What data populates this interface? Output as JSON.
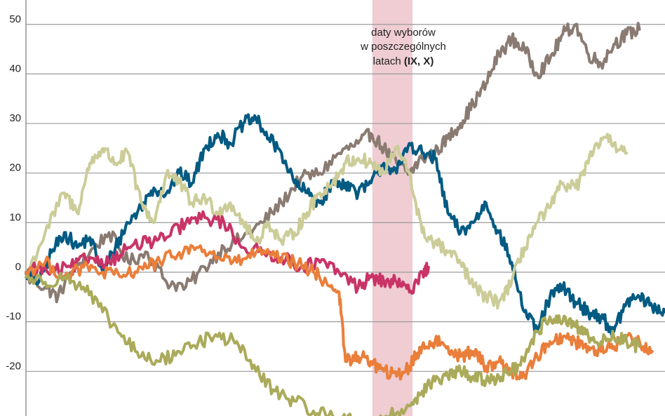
{
  "chart_data": {
    "type": "line",
    "title": "",
    "xlabel": "",
    "ylabel": "",
    "ylim": [
      -28.5,
      55
    ],
    "yticks": [
      50,
      40,
      30,
      20,
      10,
      0,
      -10,
      -20
    ],
    "yticklabels": [
      "50",
      "40",
      "30",
      "20",
      "10",
      "0",
      "-10",
      "-20"
    ],
    "grid": true,
    "x_range": [
      0,
      100
    ],
    "highlight_band": {
      "x_start": 54.2,
      "x_end": 60.5,
      "color": "#ecc4cb"
    },
    "annotation": {
      "line1": "daty wyborów",
      "line2": "w poszczególnych",
      "line3_regular": "latach ",
      "line3_bold": "(IX, X)"
    },
    "series": [
      {
        "color": "#8a7b72",
        "x": [
          0,
          3,
          5,
          7,
          10,
          13,
          16,
          19,
          22,
          25,
          28,
          31,
          34,
          37,
          40,
          43,
          46,
          49,
          52,
          54,
          56,
          58,
          60,
          62,
          64,
          66,
          68,
          70,
          72,
          74,
          76,
          78,
          80,
          82,
          84,
          86,
          88,
          90,
          92,
          94,
          96
        ],
        "y": [
          -1,
          -3,
          -5,
          0,
          4,
          8,
          2,
          4,
          -2,
          -3,
          1,
          5,
          7,
          10,
          14,
          19,
          20,
          24,
          26,
          28,
          25,
          22,
          20,
          23,
          24,
          27,
          30,
          34,
          38,
          44,
          47,
          45,
          40,
          43,
          48,
          50,
          44,
          42,
          46,
          48,
          49
        ]
      },
      {
        "color": "#005a82",
        "x": [
          0,
          2,
          4,
          6,
          8,
          10,
          12,
          14,
          16,
          18,
          20,
          22,
          24,
          26,
          28,
          30,
          32,
          34,
          36,
          38,
          40,
          42,
          44,
          46,
          48,
          50,
          52,
          54,
          56,
          58,
          60,
          62,
          64,
          66,
          68,
          70,
          72,
          74,
          76,
          78,
          80,
          82,
          84,
          86,
          88,
          90,
          92,
          94,
          96,
          98,
          100
        ],
        "y": [
          0,
          -2,
          4,
          8,
          5,
          7,
          0,
          5,
          10,
          13,
          17,
          16,
          20,
          18,
          25,
          28,
          26,
          30,
          31,
          27,
          24,
          18,
          16,
          14,
          18,
          18,
          16,
          18,
          22,
          20,
          26,
          24,
          23,
          12,
          8,
          10,
          14,
          8,
          2,
          -8,
          -12,
          -5,
          -3,
          -6,
          -8,
          -9,
          -12,
          -6,
          -5,
          -7,
          -8
        ]
      },
      {
        "color": "#cccc99",
        "x": [
          0,
          3,
          6,
          8,
          10,
          12,
          14,
          16,
          18,
          20,
          22,
          24,
          26,
          28,
          30,
          32,
          34,
          36,
          38,
          40,
          42,
          44,
          46,
          48,
          50,
          52,
          54,
          56,
          58,
          60,
          62,
          64,
          66,
          68,
          70,
          72,
          74,
          76,
          78,
          80,
          82,
          84,
          86,
          88,
          90,
          92,
          94
        ],
        "y": [
          -1,
          8,
          16,
          12,
          22,
          25,
          22,
          24,
          14,
          10,
          20,
          18,
          14,
          15,
          12,
          14,
          10,
          6,
          10,
          6,
          8,
          12,
          16,
          18,
          22,
          23,
          22,
          20,
          25,
          20,
          8,
          6,
          4,
          2,
          -3,
          -5,
          -6,
          -2,
          5,
          10,
          13,
          18,
          17,
          22,
          27,
          26,
          24
        ]
      },
      {
        "color": "#c93366",
        "x": [
          1,
          4,
          7,
          10,
          13,
          16,
          19,
          22,
          25,
          28,
          31,
          34,
          37,
          40,
          43,
          46,
          49,
          52,
          54,
          56,
          58,
          60,
          62,
          63
        ],
        "y": [
          1,
          0,
          1,
          3,
          2,
          5,
          6,
          7,
          10,
          11,
          10,
          5,
          4,
          3,
          1,
          2,
          0,
          -3,
          -1,
          -2,
          -2,
          -4,
          0,
          1
        ]
      },
      {
        "color": "#ea7e3a",
        "x": [
          0,
          3,
          6,
          9,
          12,
          15,
          18,
          21,
          24,
          27,
          30,
          33,
          36,
          39,
          42,
          45,
          47,
          49,
          50,
          52,
          54,
          56,
          58,
          60,
          62,
          64,
          66,
          68,
          70,
          72,
          74,
          76,
          78,
          80,
          82,
          84,
          86,
          88,
          90,
          92,
          94,
          96,
          98
        ],
        "y": [
          0,
          2,
          -1,
          1,
          0,
          -1,
          1,
          2,
          4,
          5,
          3,
          2,
          4,
          3,
          2,
          0,
          -2,
          -4,
          -18,
          -17,
          -18,
          -20,
          -21,
          -19,
          -15,
          -14,
          -15,
          -17,
          -16,
          -19,
          -18,
          -20,
          -21,
          -17,
          -14,
          -13,
          -14,
          -15,
          -16,
          -15,
          -13,
          -14,
          -16
        ]
      },
      {
        "color": "#aaaa5a",
        "x": [
          0,
          3,
          6,
          9,
          12,
          15,
          18,
          21,
          24,
          27,
          30,
          33,
          36,
          39,
          42,
          45,
          48,
          51,
          54,
          57,
          60,
          62,
          64,
          66,
          68,
          70,
          72,
          74,
          76,
          78,
          80,
          82,
          84,
          86,
          88,
          90,
          92,
          94,
          96
        ],
        "y": [
          -1,
          -2,
          -1,
          -3,
          -8,
          -13,
          -17,
          -18,
          -16,
          -14,
          -13,
          -14,
          -20,
          -24,
          -26,
          -28,
          -29,
          -30,
          -31,
          -29,
          -27,
          -24,
          -22,
          -21,
          -20,
          -21,
          -22,
          -21,
          -20,
          -18,
          -12,
          -9,
          -10,
          -11,
          -13,
          -14,
          -13,
          -14,
          -15
        ]
      }
    ]
  }
}
